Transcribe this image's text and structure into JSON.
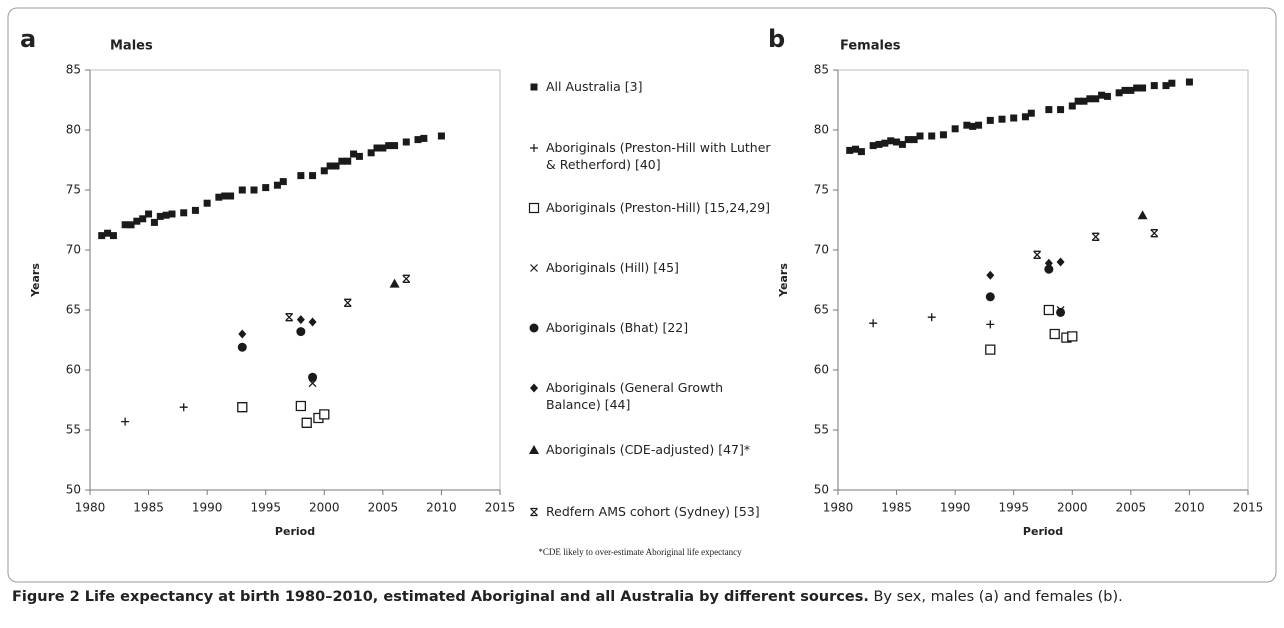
{
  "chart_data": [
    {
      "type": "scatter",
      "panel": "a",
      "title": "Males",
      "y_label": "Years",
      "x_label": "Period",
      "xlim": [
        1980,
        2015
      ],
      "xticks": [
        1980,
        1985,
        1990,
        1995,
        2000,
        2005,
        2010,
        2015
      ],
      "ylim": [
        50,
        85
      ],
      "yticks": [
        50,
        55,
        60,
        65,
        70,
        75,
        80,
        85
      ],
      "grid": false,
      "series": [
        {
          "name": "All Australia [3]",
          "marker": "square",
          "color": "#1a1a1a",
          "x": [
            1981,
            1981.5,
            1982,
            1983,
            1983.5,
            1984,
            1984.5,
            1985,
            1985.5,
            1986,
            1986.5,
            1987,
            1988,
            1989,
            1990,
            1991,
            1991.5,
            1992,
            1993,
            1994,
            1995,
            1996,
            1996.5,
            1998,
            1999,
            2000,
            2000.5,
            2001,
            2001.5,
            2002,
            2002.5,
            2003,
            2004,
            2004.5,
            2005,
            2005.5,
            2006,
            2007,
            2008,
            2008.5,
            2010
          ],
          "values": [
            71.2,
            71.4,
            71.2,
            72.1,
            72.1,
            72.4,
            72.6,
            73.0,
            72.3,
            72.8,
            72.9,
            73.0,
            73.1,
            73.3,
            73.9,
            74.4,
            74.5,
            74.5,
            75.0,
            75.0,
            75.2,
            75.4,
            75.7,
            76.2,
            76.2,
            76.6,
            77.0,
            77.0,
            77.4,
            77.4,
            78.0,
            77.8,
            78.1,
            78.5,
            78.5,
            78.7,
            78.7,
            79.0,
            79.2,
            79.3,
            79.5
          ]
        },
        {
          "name": "Aboriginals (Preston-Hill with Luther & Retherford) [40]",
          "marker": "plus",
          "color": "#1a1a1a",
          "x": [
            1983,
            1988,
            1993
          ],
          "values": [
            55.7,
            56.9,
            56.9
          ]
        },
        {
          "name": "Aboriginals (Preston-Hill) [15,24,29]",
          "marker": "open-square",
          "color": "#1a1a1a",
          "x": [
            1993,
            1998,
            1998.5,
            1999.5,
            2000
          ],
          "values": [
            56.9,
            57.0,
            55.6,
            56.0,
            56.3
          ]
        },
        {
          "name": "Aboriginals (Hill) [45]",
          "marker": "x",
          "color": "#1a1a1a",
          "x": [
            1999
          ],
          "values": [
            58.9
          ]
        },
        {
          "name": "Aboriginals (Bhat) [22]",
          "marker": "circle",
          "color": "#1a1a1a",
          "x": [
            1993,
            1998,
            1999
          ],
          "values": [
            61.9,
            63.2,
            59.4
          ]
        },
        {
          "name": "Aboriginals (General Growth Balance) [44]",
          "marker": "diamond",
          "color": "#1a1a1a",
          "x": [
            1993,
            1998,
            1999
          ],
          "values": [
            63.0,
            64.2,
            64.0
          ]
        },
        {
          "name": "Aboriginals (CDE-adjusted) [47]*",
          "marker": "triangle",
          "color": "#1a1a1a",
          "x": [
            2006
          ],
          "values": [
            67.2
          ]
        },
        {
          "name": "Redfern AMS cohort (Sydney) [53]",
          "marker": "asterisk",
          "color": "#1a1a1a",
          "x": [
            1997,
            2002,
            2007
          ],
          "values": [
            64.4,
            65.6,
            67.6
          ]
        }
      ]
    },
    {
      "type": "scatter",
      "panel": "b",
      "title": "Females",
      "y_label": "Years",
      "x_label": "Period",
      "xlim": [
        1980,
        2015
      ],
      "xticks": [
        1980,
        1985,
        1990,
        1995,
        2000,
        2005,
        2010,
        2015
      ],
      "ylim": [
        50,
        85
      ],
      "yticks": [
        50,
        55,
        60,
        65,
        70,
        75,
        80,
        85
      ],
      "grid": false,
      "series": [
        {
          "marker": "square",
          "color": "#1a1a1a",
          "x": [
            1981,
            1981.5,
            1982,
            1983,
            1983.5,
            1984,
            1984.5,
            1985,
            1985.5,
            1986,
            1986.5,
            1987,
            1988,
            1989,
            1990,
            1991,
            1991.5,
            1992,
            1993,
            1994,
            1995,
            1996,
            1996.5,
            1998,
            1999,
            2000,
            2000.5,
            2001,
            2001.5,
            2002,
            2002.5,
            2003,
            2004,
            2004.5,
            2005,
            2005.5,
            2006,
            2007,
            2008,
            2008.5,
            2010
          ],
          "values": [
            78.3,
            78.4,
            78.2,
            78.7,
            78.8,
            78.9,
            79.1,
            79.0,
            78.8,
            79.2,
            79.2,
            79.5,
            79.5,
            79.6,
            80.1,
            80.4,
            80.3,
            80.4,
            80.8,
            80.9,
            81.0,
            81.1,
            81.4,
            81.7,
            81.7,
            82.0,
            82.4,
            82.4,
            82.6,
            82.6,
            82.9,
            82.8,
            83.1,
            83.3,
            83.3,
            83.5,
            83.5,
            83.7,
            83.7,
            83.9,
            84.0
          ]
        },
        {
          "marker": "plus",
          "color": "#1a1a1a",
          "x": [
            1983,
            1988,
            1993
          ],
          "values": [
            63.9,
            64.4,
            63.8
          ]
        },
        {
          "marker": "open-square",
          "color": "#1a1a1a",
          "x": [
            1993,
            1998,
            1998.5,
            1999.5,
            2000
          ],
          "values": [
            61.7,
            65.0,
            63.0,
            62.7,
            62.8
          ]
        },
        {
          "marker": "x",
          "color": "#1a1a1a",
          "x": [
            1999
          ],
          "values": [
            65.0
          ]
        },
        {
          "marker": "circle",
          "color": "#1a1a1a",
          "x": [
            1993,
            1998,
            1999
          ],
          "values": [
            66.1,
            68.4,
            64.8
          ]
        },
        {
          "marker": "diamond",
          "color": "#1a1a1a",
          "x": [
            1993,
            1998,
            1999
          ],
          "values": [
            67.9,
            68.9,
            69.0
          ]
        },
        {
          "marker": "triangle",
          "color": "#1a1a1a",
          "x": [
            2006
          ],
          "values": [
            72.9
          ]
        },
        {
          "marker": "asterisk",
          "color": "#1a1a1a",
          "x": [
            1997,
            2002,
            2007
          ],
          "values": [
            69.6,
            71.1,
            71.4
          ]
        }
      ]
    }
  ],
  "footnote": "*CDE likely to over-estimate Aboriginal life expectancy",
  "caption": {
    "title": "Figure 2 Life expectancy at birth 1980–2010, estimated Aboriginal and all Australia by different sources.",
    "text": "By sex, males (a) and females (b)."
  }
}
